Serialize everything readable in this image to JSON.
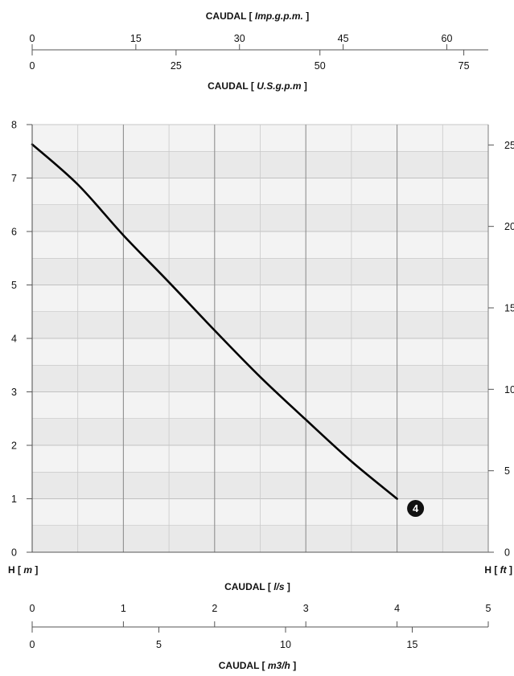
{
  "chart_data": {
    "type": "line",
    "series": [
      {
        "name": "4",
        "x": [
          0,
          0.5,
          1,
          1.5,
          2,
          2.5,
          3,
          3.5,
          4
        ],
        "values": [
          7.63,
          6.88,
          5.93,
          5.05,
          4.15,
          3.28,
          2.48,
          1.7,
          1.0
        ]
      }
    ],
    "x_primary": {
      "title": "CAUDAL",
      "unit": "l/s",
      "ticks": [
        "0",
        "1",
        "2",
        "3",
        "4",
        "5"
      ],
      "range": [
        0,
        5
      ]
    },
    "x_m3h": {
      "title": "CAUDAL",
      "unit": "m3/h",
      "ticks": [
        "0",
        "5",
        "10",
        "15"
      ],
      "range": [
        0,
        18
      ]
    },
    "x_imp": {
      "title": "CAUDAL",
      "unit": "Imp.g.p.m.",
      "ticks": [
        "0",
        "15",
        "30",
        "45",
        "60"
      ],
      "range": [
        0,
        66
      ]
    },
    "x_usg": {
      "title": "CAUDAL",
      "unit": "U.S.g.p.m",
      "ticks": [
        "0",
        "25",
        "50",
        "75"
      ],
      "range": [
        0,
        79.25
      ]
    },
    "y_left": {
      "title": "H",
      "unit": "m",
      "ticks": [
        "0",
        "1",
        "2",
        "3",
        "4",
        "5",
        "6",
        "7",
        "8"
      ],
      "range": [
        0,
        8
      ]
    },
    "y_right": {
      "title": "H",
      "unit": "ft",
      "ticks": [
        "0",
        "5",
        "10",
        "15",
        "20",
        "25"
      ],
      "range": [
        0,
        26.25
      ]
    },
    "grid": true,
    "curve_label": "4",
    "colors": {
      "curve": "#000000",
      "band_dark": "#e9e9e9",
      "band_light": "#f3f3f3",
      "grid": "#8a8a8a"
    }
  }
}
